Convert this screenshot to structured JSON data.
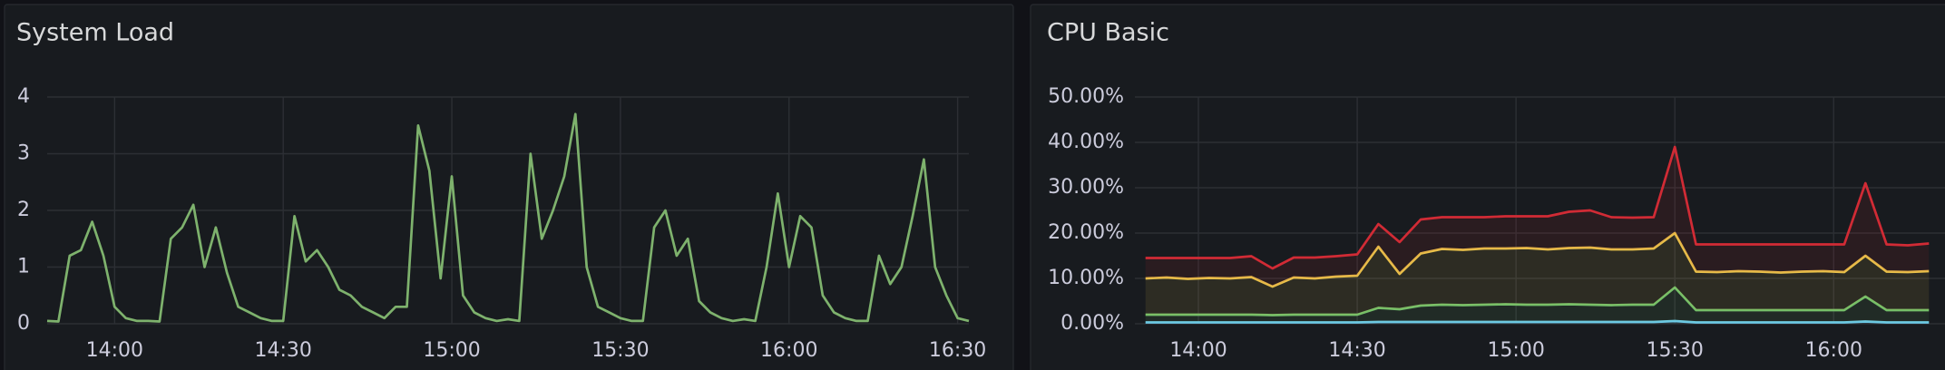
{
  "chart_data": [
    {
      "type": "line",
      "title": "System Load",
      "color": "#7eb26d",
      "x": [
        828,
        830,
        832,
        834,
        836,
        838,
        840,
        842,
        844,
        846,
        848,
        850,
        852,
        854,
        856,
        858,
        860,
        862,
        864,
        866,
        868,
        870,
        872,
        874,
        876,
        878,
        880,
        882,
        884,
        886,
        888,
        890,
        892,
        894,
        896,
        898,
        900,
        902,
        904,
        906,
        908,
        910,
        912,
        914,
        916,
        918,
        920,
        922,
        924,
        926,
        928,
        930,
        932,
        934,
        936,
        938,
        940,
        942,
        944,
        946,
        948,
        950,
        952,
        954,
        956,
        958,
        960,
        962,
        964,
        966,
        968,
        970,
        972,
        974,
        976,
        978,
        980,
        982,
        984,
        986,
        988,
        990,
        992
      ],
      "values": [
        0.05,
        0.04,
        1.2,
        1.3,
        1.8,
        1.2,
        0.3,
        0.1,
        0.05,
        0.05,
        0.04,
        1.5,
        1.7,
        2.1,
        1.0,
        1.7,
        0.9,
        0.3,
        0.2,
        0.1,
        0.05,
        0.05,
        1.9,
        1.1,
        1.3,
        1.0,
        0.6,
        0.5,
        0.3,
        0.2,
        0.1,
        0.3,
        0.3,
        3.5,
        2.7,
        0.8,
        2.6,
        0.5,
        0.2,
        0.1,
        0.05,
        0.08,
        0.05,
        3.0,
        1.5,
        2.0,
        2.6,
        3.7,
        1.0,
        0.3,
        0.2,
        0.1,
        0.05,
        0.05,
        1.7,
        2.0,
        1.2,
        1.5,
        0.4,
        0.2,
        0.1,
        0.05,
        0.08,
        0.05,
        1.0,
        2.3,
        1.0,
        1.9,
        1.7,
        0.5,
        0.2,
        0.1,
        0.05,
        0.05,
        1.2,
        0.7,
        1.0,
        1.9,
        2.9,
        1.0,
        0.5,
        0.1,
        0.05
      ],
      "xlim": [
        828,
        992
      ],
      "xticks": [
        {
          "value": 840,
          "label": "14:00"
        },
        {
          "value": 870,
          "label": "14:30"
        },
        {
          "value": 900,
          "label": "15:00"
        },
        {
          "value": 930,
          "label": "15:30"
        },
        {
          "value": 960,
          "label": "16:00"
        },
        {
          "value": 990,
          "label": "16:30"
        }
      ],
      "ylim": [
        0,
        4
      ],
      "yticks": [
        0,
        1,
        2,
        3,
        4
      ],
      "grid": true
    },
    {
      "type": "area",
      "stacked": true,
      "title": "CPU Basic",
      "x": [
        830,
        834,
        838,
        842,
        846,
        850,
        854,
        858,
        862,
        866,
        870,
        874,
        878,
        882,
        886,
        890,
        894,
        898,
        902,
        906,
        910,
        914,
        918,
        922,
        926,
        930,
        934,
        938,
        942,
        946,
        950,
        954,
        958,
        962,
        966,
        970,
        974,
        978
      ],
      "series": [
        {
          "color": "#6ccae8",
          "values": [
            0.3,
            0.3,
            0.3,
            0.3,
            0.3,
            0.3,
            0.3,
            0.3,
            0.3,
            0.3,
            0.3,
            0.4,
            0.4,
            0.4,
            0.4,
            0.4,
            0.4,
            0.4,
            0.4,
            0.4,
            0.4,
            0.4,
            0.4,
            0.4,
            0.4,
            0.6,
            0.3,
            0.3,
            0.3,
            0.3,
            0.3,
            0.3,
            0.3,
            0.3,
            0.5,
            0.3,
            0.3,
            0.3
          ]
        },
        {
          "color": "#73bf69",
          "values": [
            1.7,
            1.7,
            1.7,
            1.7,
            1.7,
            1.7,
            1.6,
            1.7,
            1.7,
            1.7,
            1.7,
            3.1,
            2.8,
            3.6,
            3.8,
            3.7,
            3.8,
            3.9,
            3.8,
            3.8,
            3.9,
            3.8,
            3.7,
            3.8,
            3.8,
            7.4,
            2.7,
            2.7,
            2.7,
            2.7,
            2.7,
            2.7,
            2.7,
            2.7,
            5.5,
            2.7,
            2.7,
            2.7
          ]
        },
        {
          "color": "#e8c14a",
          "values": [
            8,
            8.2,
            7.9,
            8.1,
            8,
            8.3,
            6.3,
            8.2,
            8,
            8.4,
            8.6,
            13.5,
            7.8,
            11.5,
            12.3,
            12.2,
            12.4,
            12.3,
            12.5,
            12.2,
            12.4,
            12.6,
            12.3,
            12.2,
            12.4,
            12,
            8.5,
            8.4,
            8.6,
            8.5,
            8.3,
            8.5,
            8.6,
            8.4,
            9,
            8.5,
            8.4,
            8.6
          ]
        },
        {
          "color": "#d12b35",
          "values": [
            4.5,
            4.3,
            4.6,
            4.4,
            4.5,
            4.6,
            4,
            4.4,
            4.6,
            4.5,
            4.7,
            5,
            7,
            7.5,
            7,
            7.2,
            6.9,
            7.1,
            7,
            7.3,
            8,
            8.2,
            7.1,
            7,
            6.9,
            19,
            6,
            6.1,
            5.9,
            6,
            6.2,
            6,
            5.9,
            6.1,
            16,
            6,
            5.9,
            6.1
          ]
        }
      ],
      "xlim": [
        828,
        992
      ],
      "xticks": [
        {
          "value": 840,
          "label": "14:00"
        },
        {
          "value": 870,
          "label": "14:30"
        },
        {
          "value": 900,
          "label": "15:00"
        },
        {
          "value": 930,
          "label": "15:30"
        },
        {
          "value": 960,
          "label": "16:00"
        }
      ],
      "ylim": [
        0,
        50
      ],
      "yticks": [
        {
          "value": 0,
          "label": "0.00%"
        },
        {
          "value": 10,
          "label": "10.00%"
        },
        {
          "value": 20,
          "label": "20.00%"
        },
        {
          "value": 30,
          "label": "30.00%"
        },
        {
          "value": 40,
          "label": "40.00%"
        },
        {
          "value": 50,
          "label": "50.00%"
        }
      ],
      "grid": true
    }
  ]
}
